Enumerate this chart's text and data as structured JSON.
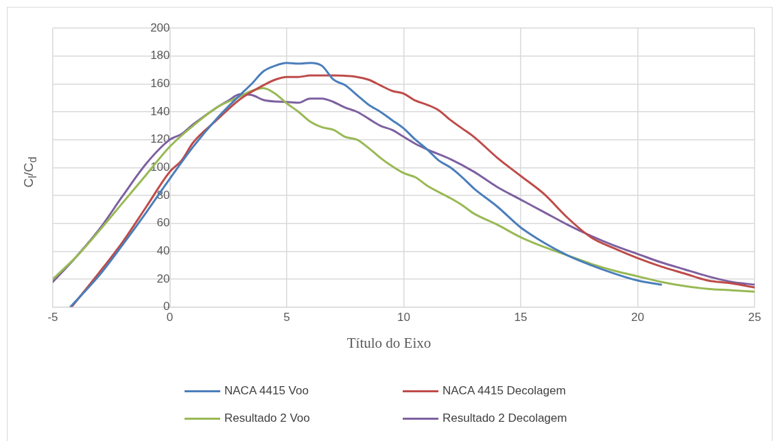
{
  "chart_data": {
    "type": "line",
    "xlabel": "Título do Eixo",
    "ylabel": "C$_{l}$/C$_{d}$",
    "xlim": [
      -5,
      25
    ],
    "xticks": [
      -5,
      0,
      5,
      10,
      15,
      20,
      25
    ],
    "ylim": [
      0,
      200
    ],
    "yticks": [
      0,
      20,
      40,
      60,
      80,
      100,
      120,
      140,
      160,
      180,
      200
    ],
    "grid": true,
    "legend": "bottom",
    "marker": "none",
    "line_style": "solid",
    "series": [
      {
        "name": "NACA 4415 Voo",
        "color": "#4a7ebb",
        "x": [
          -4.25,
          -3,
          -2,
          -1,
          0,
          1,
          2,
          3,
          3.5,
          4,
          4.5,
          5,
          5.5,
          6,
          6.5,
          7,
          7.5,
          8,
          8.5,
          9,
          9.5,
          10,
          10.5,
          11,
          11.5,
          12,
          12.5,
          13,
          14,
          15,
          16,
          17,
          18,
          19,
          20,
          21
        ],
        "values": [
          0,
          23,
          45,
          68,
          92,
          115,
          135,
          152,
          160,
          169,
          173,
          175,
          174.5,
          175,
          173,
          163,
          159,
          152,
          145,
          140,
          134,
          128,
          120,
          113,
          105,
          100,
          93,
          85,
          72,
          57,
          46,
          37,
          30,
          24,
          19,
          16
        ]
      },
      {
        "name": "NACA 4415 Decolagem",
        "color": "#be4b48",
        "x": [
          -4.2,
          -3,
          -2,
          -1,
          0,
          0.5,
          1,
          2,
          3,
          4,
          4.5,
          5,
          5.5,
          6,
          7,
          8,
          8.5,
          9,
          9.5,
          10,
          10.5,
          11,
          11.5,
          12,
          12.5,
          13,
          14,
          15,
          16,
          17,
          18,
          19,
          20,
          21,
          22,
          23,
          24,
          25
        ],
        "values": [
          0,
          25,
          47,
          72,
          97,
          105,
          118,
          134,
          149,
          159,
          163,
          165,
          165,
          166,
          166,
          165,
          163,
          159,
          155,
          153,
          148,
          145,
          141,
          134,
          128,
          122,
          107,
          94,
          81,
          64,
          50,
          42,
          35,
          29,
          24,
          19,
          17,
          14
        ]
      },
      {
        "name": "Resultado 2 Voo",
        "color": "#98b954",
        "x": [
          -5,
          -4,
          -3,
          -2,
          -1,
          0,
          1,
          2,
          3,
          3.5,
          4,
          4.5,
          5,
          5.5,
          6,
          6.5,
          7,
          7.5,
          8,
          8.5,
          9,
          9.5,
          10,
          10.5,
          11,
          12,
          12.5,
          13,
          14,
          15,
          16,
          17,
          18,
          19,
          20,
          21,
          22,
          23,
          24,
          25
        ],
        "values": [
          20,
          36,
          55,
          75,
          95,
          115,
          130,
          143,
          151,
          155,
          157,
          153,
          146,
          140,
          133,
          129,
          127,
          122,
          120,
          114,
          107,
          101,
          96,
          93,
          87,
          78,
          73,
          67,
          59,
          50,
          43,
          37,
          31,
          26,
          22,
          18,
          15,
          13,
          12,
          11
        ]
      },
      {
        "name": "Resultado 2 Decolagem",
        "color": "#7d60a0",
        "x": [
          -5,
          -4,
          -3,
          -2,
          -1,
          0,
          0.5,
          1,
          2,
          2.5,
          3,
          3.5,
          4,
          5,
          5.5,
          6,
          6.5,
          7,
          7.5,
          8,
          8.5,
          9,
          9.5,
          10,
          10.5,
          11,
          12,
          13,
          14,
          15,
          16,
          17,
          18,
          19,
          20,
          21,
          22,
          23,
          24,
          25
        ],
        "values": [
          18,
          36,
          56,
          80,
          103,
          120,
          124,
          131,
          143,
          148,
          152.5,
          152,
          148.5,
          147,
          146.5,
          149.5,
          149.5,
          147,
          143,
          140,
          135,
          130,
          127,
          122,
          117,
          113,
          106,
          97,
          86,
          77,
          68,
          59,
          51,
          44,
          38,
          32,
          27,
          22,
          18,
          16
        ]
      }
    ]
  }
}
